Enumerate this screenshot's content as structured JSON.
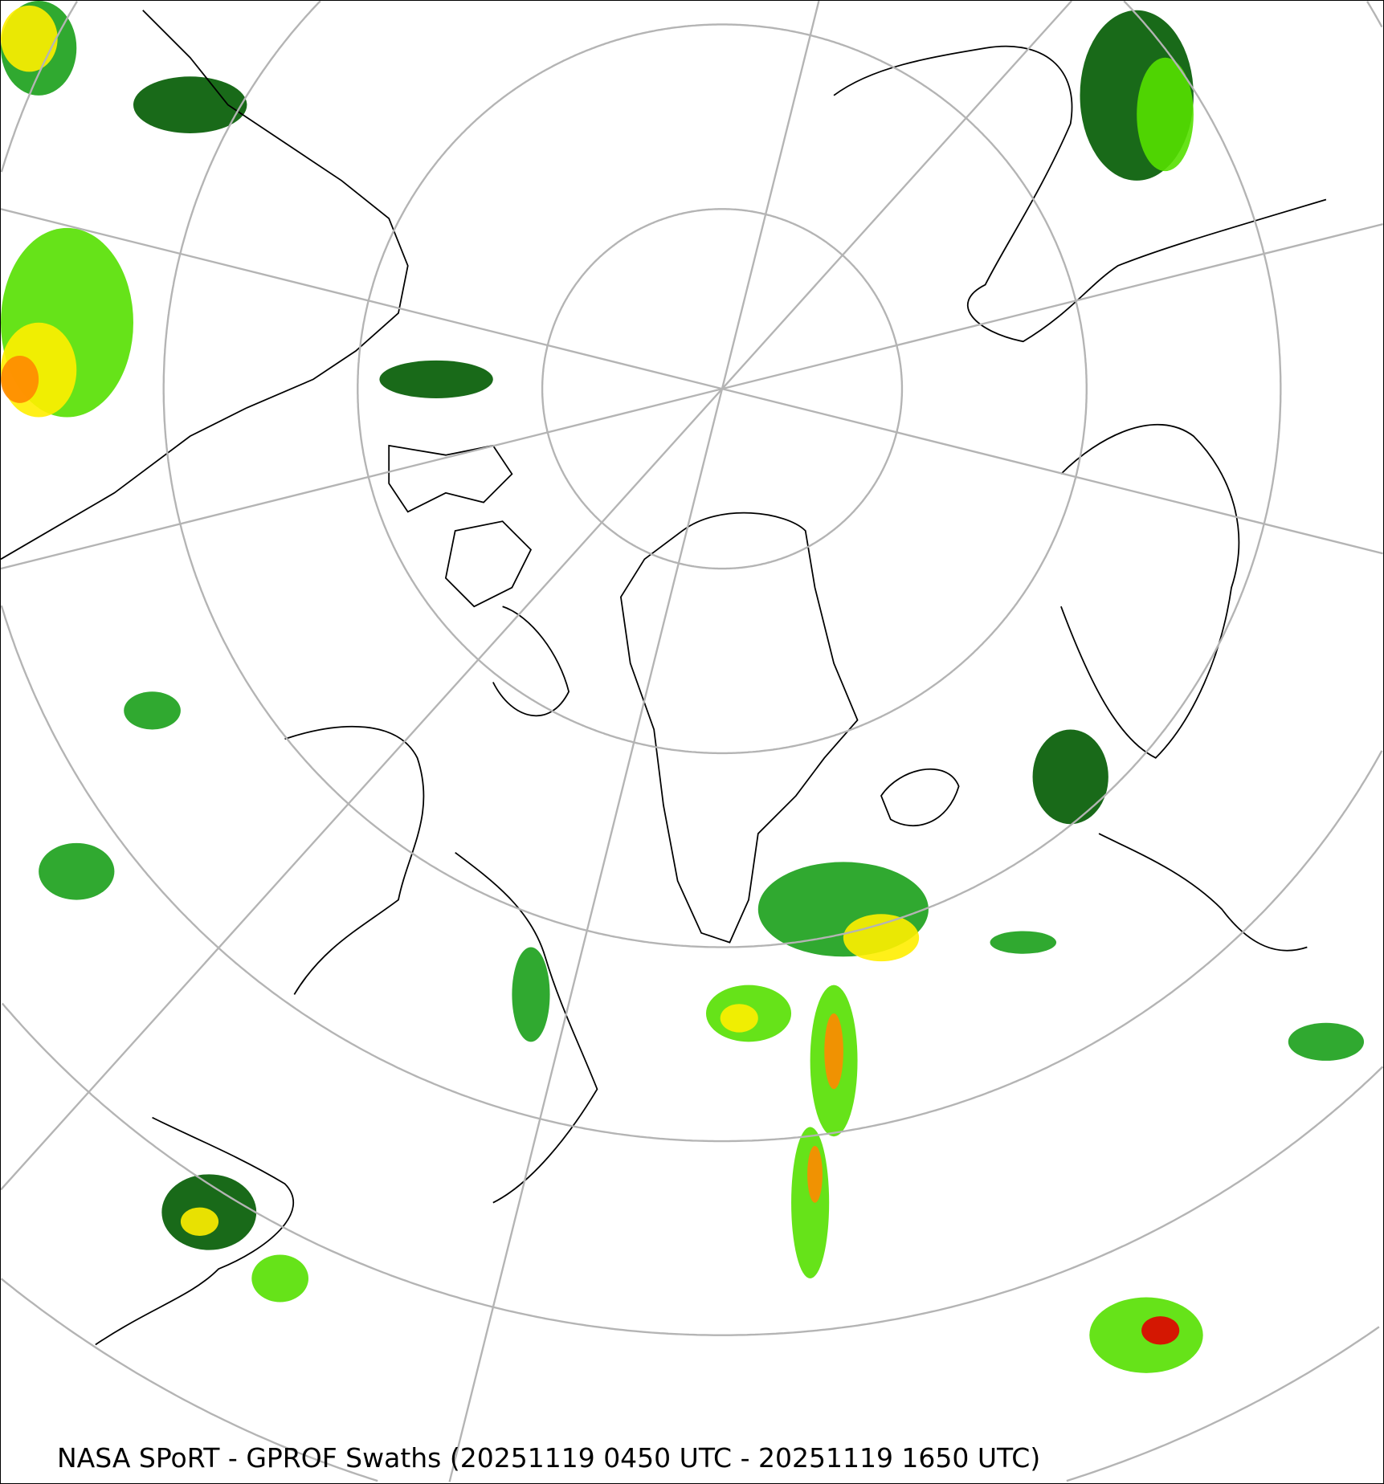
{
  "map": {
    "caption": "NASA SPoRT - GPROF Swaths (20251119 0450 UTC - 20251119 1650 UTC)",
    "projection": "north polar stereographic",
    "colors": {
      "grid": "#b4b4b4",
      "coastline": "#000000",
      "precip_light": "#005a00",
      "precip_low": "#1aa01a",
      "precip_mid": "#55e000",
      "precip_high": "#ffee00",
      "precip_heavy": "#ff8800",
      "precip_extreme": "#e00000"
    }
  }
}
